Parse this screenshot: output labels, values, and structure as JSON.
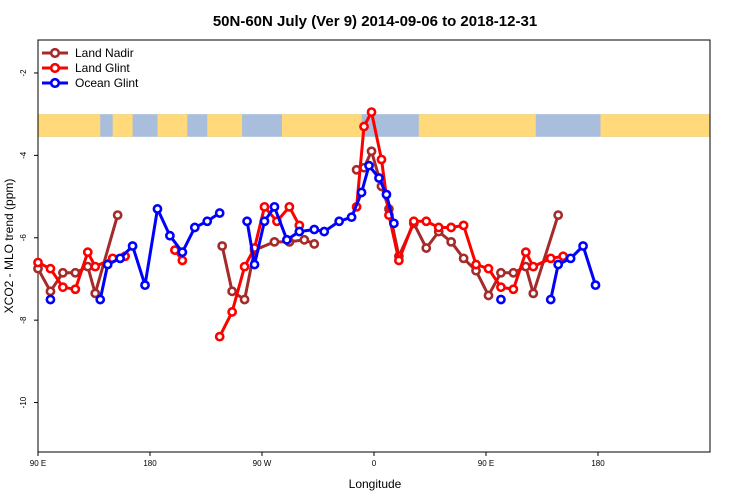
{
  "chart_data": {
    "type": "line",
    "title": "50N-60N July (Ver 9)   2014-09-06 to 2018-12-31",
    "xlabel": "Longitude",
    "ylabel": "XCO2 - MLO trend (ppm)",
    "xlim": [
      -90,
      180
    ],
    "ylim": [
      -11.2,
      -1.2
    ],
    "x_ticks": [
      {
        "value": -90,
        "label": "90 E"
      },
      {
        "value": -45,
        "label": "180"
      },
      {
        "value": 0,
        "label": "90 W"
      },
      {
        "value": 45,
        "label": "0"
      },
      {
        "value": 90,
        "label": "90 E"
      },
      {
        "value": 135,
        "label": "180"
      }
    ],
    "y_ticks": [
      {
        "value": -2,
        "label": "-2"
      },
      {
        "value": -4,
        "label": "-4"
      },
      {
        "value": -6,
        "label": "-6"
      },
      {
        "value": -8,
        "label": "-8"
      },
      {
        "value": -10,
        "label": "-10"
      }
    ],
    "legend_position": "top-left",
    "grid": false,
    "map_strip": {
      "y_top": -3.0,
      "y_bottom": -3.55,
      "land_color": "#FFD97A",
      "ocean_color": "#A8BEDC"
    },
    "series": [
      {
        "name": "Land Nadir",
        "color": "#A52A2A",
        "segments": [
          [
            [
              -90,
              -6.75
            ],
            [
              -85,
              -7.3
            ],
            [
              -80,
              -6.85
            ],
            [
              -75,
              -6.85
            ],
            [
              -70,
              -6.7
            ],
            [
              -67,
              -7.35
            ],
            [
              -58,
              -5.45
            ]
          ],
          [
            [
              -16,
              -6.2
            ],
            [
              -12,
              -7.3
            ],
            [
              -7,
              -7.5
            ],
            [
              -3,
              -6.3
            ],
            [
              5,
              -6.1
            ],
            [
              11,
              -6.1
            ],
            [
              17,
              -6.05
            ],
            [
              21,
              -6.15
            ]
          ],
          [
            [
              38,
              -4.35
            ],
            [
              41,
              -4.3
            ],
            [
              44,
              -3.9
            ],
            [
              48,
              -4.75
            ],
            [
              51,
              -5.3
            ],
            [
              55,
              -6.45
            ],
            [
              61,
              -5.65
            ],
            [
              66,
              -6.25
            ],
            [
              71,
              -5.85
            ],
            [
              76,
              -6.1
            ],
            [
              81,
              -6.5
            ],
            [
              86,
              -6.8
            ],
            [
              91,
              -7.4
            ],
            [
              96,
              -6.85
            ],
            [
              101,
              -6.85
            ],
            [
              106,
              -6.7
            ],
            [
              109,
              -7.35
            ],
            [
              119,
              -5.45
            ]
          ]
        ]
      },
      {
        "name": "Land Glint",
        "color": "#FF0000",
        "segments": [
          [
            [
              -90,
              -6.6
            ],
            [
              -85,
              -6.75
            ],
            [
              -80,
              -7.2
            ],
            [
              -75,
              -7.25
            ],
            [
              -70,
              -6.35
            ],
            [
              -67,
              -6.7
            ],
            [
              -60,
              -6.5
            ],
            [
              -55,
              -6.45
            ]
          ],
          [
            [
              -35,
              -6.3
            ],
            [
              -32,
              -6.55
            ]
          ],
          [
            [
              -17,
              -8.4
            ],
            [
              -12,
              -7.8
            ],
            [
              -7,
              -6.7
            ],
            [
              -3,
              -6.25
            ],
            [
              1,
              -5.25
            ],
            [
              6,
              -5.6
            ],
            [
              11,
              -5.25
            ],
            [
              15,
              -5.7
            ]
          ],
          [
            [
              38,
              -5.25
            ],
            [
              41,
              -3.3
            ],
            [
              44,
              -2.95
            ],
            [
              48,
              -4.1
            ],
            [
              51,
              -5.45
            ],
            [
              55,
              -6.55
            ],
            [
              61,
              -5.6
            ],
            [
              66,
              -5.6
            ],
            [
              71,
              -5.75
            ],
            [
              76,
              -5.75
            ],
            [
              81,
              -5.7
            ],
            [
              86,
              -6.65
            ],
            [
              91,
              -6.75
            ],
            [
              96,
              -7.2
            ],
            [
              101,
              -7.25
            ],
            [
              106,
              -6.35
            ],
            [
              109,
              -6.7
            ],
            [
              116,
              -6.5
            ],
            [
              121,
              -6.45
            ]
          ]
        ]
      },
      {
        "name": "Ocean Glint",
        "color": "#0000FF",
        "segments": [
          [
            [
              -85,
              -7.5
            ]
          ],
          [
            [
              -65,
              -7.5
            ],
            [
              -62,
              -6.65
            ],
            [
              -57,
              -6.5
            ],
            [
              -52,
              -6.2
            ],
            [
              -47,
              -7.15
            ],
            [
              -42,
              -5.3
            ],
            [
              -37,
              -5.95
            ],
            [
              -32,
              -6.35
            ],
            [
              -27,
              -5.75
            ],
            [
              -22,
              -5.6
            ],
            [
              -17,
              -5.4
            ]
          ],
          [
            [
              -6,
              -5.6
            ],
            [
              -3,
              -6.65
            ],
            [
              1,
              -5.6
            ],
            [
              5,
              -5.25
            ],
            [
              10,
              -6.05
            ],
            [
              15,
              -5.85
            ],
            [
              21,
              -5.8
            ],
            [
              25,
              -5.85
            ],
            [
              31,
              -5.6
            ],
            [
              36,
              -5.5
            ],
            [
              40,
              -4.9
            ],
            [
              43,
              -4.25
            ],
            [
              47,
              -4.55
            ],
            [
              50,
              -4.95
            ],
            [
              53,
              -5.65
            ]
          ],
          [
            [
              96,
              -7.5
            ]
          ],
          [
            [
              116,
              -7.5
            ],
            [
              119,
              -6.65
            ],
            [
              124,
              -6.5
            ],
            [
              129,
              -6.2
            ],
            [
              134,
              -7.15
            ]
          ]
        ]
      }
    ]
  }
}
